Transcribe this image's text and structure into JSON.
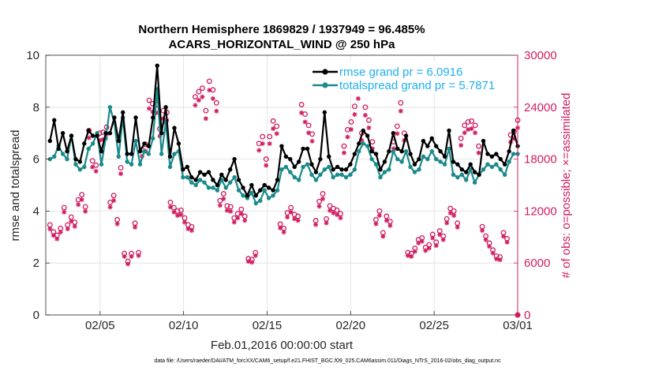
{
  "chart_data": {
    "type": "line",
    "title_line1": "Northern Hemisphere 1869829 / 1937949 = 96.485%",
    "title_line2": "ACARS_HORIZONTAL_WIND @ 250 hPa",
    "xlabel": "Feb.01,2016 00:00:00 start",
    "ylabel_left": "rmse and totalspread",
    "ylabel_right": "# of obs: o=possible; ×=assimilated",
    "footnote": "data file: /Users/raeder/DAI/ATM_forcXX/CAM6_setup/f.e21.FHIST_BGC.f09_025.CAM6assim.011/Diags_NTrS_2016-02/obs_diag_output.nc",
    "x_ticks": [
      "02/05",
      "02/10",
      "02/15",
      "02/20",
      "02/25",
      "03/01"
    ],
    "x_tick_days": [
      4,
      9,
      14,
      19,
      24,
      29
    ],
    "xlim": [
      0.75,
      29.0
    ],
    "ylim_left": [
      0,
      10
    ],
    "yticks_left": [
      "0",
      "2",
      "4",
      "6",
      "8",
      "10"
    ],
    "ylim_right": [
      0,
      30000
    ],
    "yticks_right": [
      "0",
      "6000",
      "12000",
      "18000",
      "24000",
      "30000"
    ],
    "colors": {
      "rmse": "#000000",
      "spread": "#1a8a8a",
      "obs": "#d01c60",
      "legend_text": "#20b0f0",
      "grid": "#dedede"
    },
    "series": [
      {
        "name": "rmse grand pr = 6.0916",
        "values": [
          6.7,
          7.5,
          6.4,
          7.0,
          6.3,
          6.9,
          6.0,
          5.9,
          6.6,
          7.1,
          6.9,
          6.9,
          6.3,
          7.0,
          7.0,
          7.6,
          6.7,
          7.8,
          6.2,
          6.2,
          7.6,
          6.3,
          6.6,
          6.5,
          7.6,
          9.6,
          7.0,
          8.0,
          6.1,
          7.2,
          6.6,
          5.6,
          5.7,
          5.3,
          5.2,
          5.5,
          5.4,
          5.5,
          5.2,
          5.0,
          5.4,
          5.2,
          5.6,
          6.0,
          5.2,
          4.9,
          4.6,
          5.0,
          4.6,
          4.8,
          5.0,
          4.9,
          4.8,
          5.2,
          6.5,
          6.1,
          6.0,
          5.7,
          5.9,
          6.4,
          6.4,
          5.8,
          5.5,
          6.0,
          7.8,
          6.1,
          5.6,
          5.7,
          5.6,
          5.6,
          5.8,
          6.2,
          6.6,
          7.1,
          6.9,
          6.3,
          6.2,
          5.6,
          5.9,
          6.3,
          7.0,
          6.4,
          6.3,
          6.9,
          6.2,
          5.8,
          6.0,
          6.7,
          6.5,
          6.8,
          6.5,
          6.3,
          6.1,
          7.1,
          5.9,
          5.8,
          5.6,
          5.5,
          5.8,
          5.5,
          5.4,
          6.7,
          6.2,
          6.1,
          6.2,
          6.0,
          5.8,
          6.3,
          7.1,
          6.5
        ]
      },
      {
        "name": "totalspread grand pr = 5.7871",
        "values": [
          6.0,
          6.1,
          6.5,
          6.2,
          6.0,
          6.9,
          5.8,
          5.6,
          5.7,
          6.4,
          6.6,
          7.0,
          5.8,
          6.8,
          8.0,
          7.4,
          6.1,
          7.6,
          5.9,
          5.8,
          6.7,
          5.8,
          6.3,
          6.2,
          6.8,
          8.7,
          6.2,
          7.4,
          5.7,
          6.2,
          6.3,
          5.3,
          5.3,
          5.1,
          5.0,
          5.2,
          5.1,
          4.9,
          4.9,
          4.8,
          5.2,
          4.9,
          5.1,
          5.3,
          4.8,
          4.6,
          4.5,
          4.7,
          4.3,
          4.4,
          4.8,
          4.5,
          4.6,
          4.8,
          5.6,
          5.7,
          5.5,
          5.3,
          5.2,
          5.7,
          5.8,
          5.4,
          5.2,
          5.4,
          5.6,
          5.7,
          5.3,
          5.4,
          5.4,
          5.3,
          5.4,
          5.6,
          6.3,
          6.6,
          6.5,
          6.0,
          5.8,
          5.3,
          5.5,
          5.6,
          6.3,
          6.0,
          5.9,
          6.3,
          5.7,
          5.5,
          5.6,
          6.1,
          6.0,
          6.3,
          6.0,
          5.9,
          5.8,
          6.4,
          5.4,
          5.3,
          5.4,
          5.2,
          5.6,
          5.1,
          5.4,
          5.6,
          5.8,
          5.7,
          5.8,
          5.6,
          5.4,
          5.9,
          6.2,
          6.2
        ]
      }
    ],
    "obs_possible": [
      10400,
      9600,
      9200,
      10000,
      12400,
      10400,
      11300,
      10700,
      13300,
      13900,
      12500,
      21300,
      17800,
      17300,
      21000,
      21100,
      21700,
      13000,
      13800,
      11000,
      17000,
      7100,
      6200,
      7100,
      10600,
      7200,
      19100,
      19700,
      24800,
      24400,
      24300,
      21500,
      23600,
      23400,
      13000,
      12400,
      12000,
      12100,
      11200,
      10400,
      10200,
      25200,
      25800,
      26200,
      23600,
      27000,
      26000,
      24500,
      13200,
      14000,
      12600,
      12500,
      11200,
      11700,
      12200,
      11400,
      6500,
      6400,
      7200,
      19800,
      20600,
      18000,
      20600,
      22400,
      21800,
      10500,
      10000,
      11800,
      12400,
      11600,
      11400,
      24300,
      23200,
      21900,
      20900,
      10900,
      13100,
      14000,
      11100,
      12600,
      12300,
      12100,
      11700,
      19500,
      21400,
      22300,
      24100,
      26000,
      21000,
      24000,
      22500,
      20000,
      11000,
      12000,
      9500,
      11400,
      10800,
      20000,
      21800,
      24500,
      21000,
      7200,
      7100,
      7700,
      8700,
      8900,
      7800,
      8100,
      9300,
      8400,
      9700,
      9100,
      11100,
      12300,
      12000,
      10600,
      20400,
      21900,
      22300,
      22400,
      21900,
      19500,
      10200,
      9100,
      8300,
      7500,
      6800,
      6700,
      9500,
      8800,
      20800,
      21200,
      22500
    ]
  }
}
